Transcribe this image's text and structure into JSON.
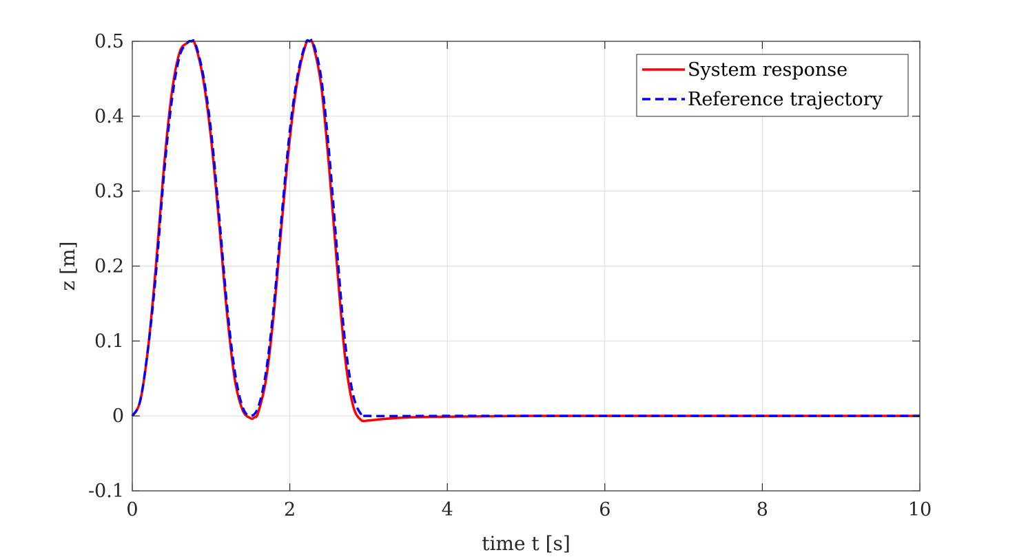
{
  "chart_data": {
    "type": "line",
    "title": "",
    "xlabel": "time t [s]",
    "ylabel": "z [m]",
    "xlim": [
      0,
      10
    ],
    "ylim": [
      -0.1,
      0.5
    ],
    "xticks": [
      0,
      2,
      4,
      6,
      8,
      10
    ],
    "xtick_labels": [
      "0",
      "2",
      "4",
      "6",
      "8",
      "10"
    ],
    "yticks": [
      -0.1,
      0,
      0.1,
      0.2,
      0.3,
      0.4,
      0.5
    ],
    "ytick_labels": [
      "-0.1",
      "0",
      "0.1",
      "0.2",
      "0.3",
      "0.4",
      "0.5"
    ],
    "grid": true,
    "legend_position": "top-right",
    "series": [
      {
        "name": "System response",
        "color": "#ff0000",
        "style": "solid",
        "x": [
          0,
          0.1,
          0.2,
          0.3,
          0.4,
          0.5,
          0.6,
          0.7,
          0.75,
          0.8,
          0.9,
          1.0,
          1.1,
          1.2,
          1.3,
          1.4,
          1.5,
          1.55,
          1.6,
          1.7,
          1.8,
          1.9,
          2.0,
          2.1,
          2.2,
          2.25,
          2.3,
          2.4,
          2.5,
          2.6,
          2.7,
          2.8,
          2.9,
          3.0,
          3.2,
          3.5,
          4.0,
          5.0,
          6.0,
          7.0,
          8.0,
          9.0,
          10.0
        ],
        "y": [
          0,
          0.02,
          0.09,
          0.2,
          0.33,
          0.43,
          0.485,
          0.498,
          0.5,
          0.495,
          0.45,
          0.37,
          0.26,
          0.14,
          0.05,
          0.008,
          -0.003,
          -0.002,
          0.005,
          0.05,
          0.14,
          0.26,
          0.37,
          0.45,
          0.495,
          0.5,
          0.494,
          0.44,
          0.33,
          0.2,
          0.08,
          0.015,
          -0.005,
          -0.006,
          -0.004,
          -0.002,
          -0.001,
          0,
          0,
          0,
          0,
          0,
          0
        ]
      },
      {
        "name": "Reference trajectory",
        "color": "#0000ff",
        "style": "dashed",
        "x": [
          0,
          0.1,
          0.2,
          0.3,
          0.4,
          0.5,
          0.6,
          0.7,
          0.75,
          0.8,
          0.9,
          1.0,
          1.1,
          1.2,
          1.3,
          1.4,
          1.5,
          1.6,
          1.7,
          1.8,
          1.9,
          2.0,
          2.1,
          2.2,
          2.25,
          2.3,
          2.4,
          2.5,
          2.6,
          2.7,
          2.8,
          2.9,
          3.0,
          4.0,
          5.0,
          6.0,
          7.0,
          8.0,
          9.0,
          10.0
        ],
        "y": [
          0,
          0.02,
          0.09,
          0.19,
          0.32,
          0.42,
          0.48,
          0.498,
          0.5,
          0.497,
          0.455,
          0.38,
          0.27,
          0.15,
          0.06,
          0.012,
          0,
          0.012,
          0.06,
          0.15,
          0.27,
          0.38,
          0.455,
          0.497,
          0.5,
          0.497,
          0.45,
          0.35,
          0.22,
          0.1,
          0.03,
          0.003,
          0,
          0,
          0,
          0,
          0,
          0,
          0,
          0
        ]
      }
    ]
  }
}
